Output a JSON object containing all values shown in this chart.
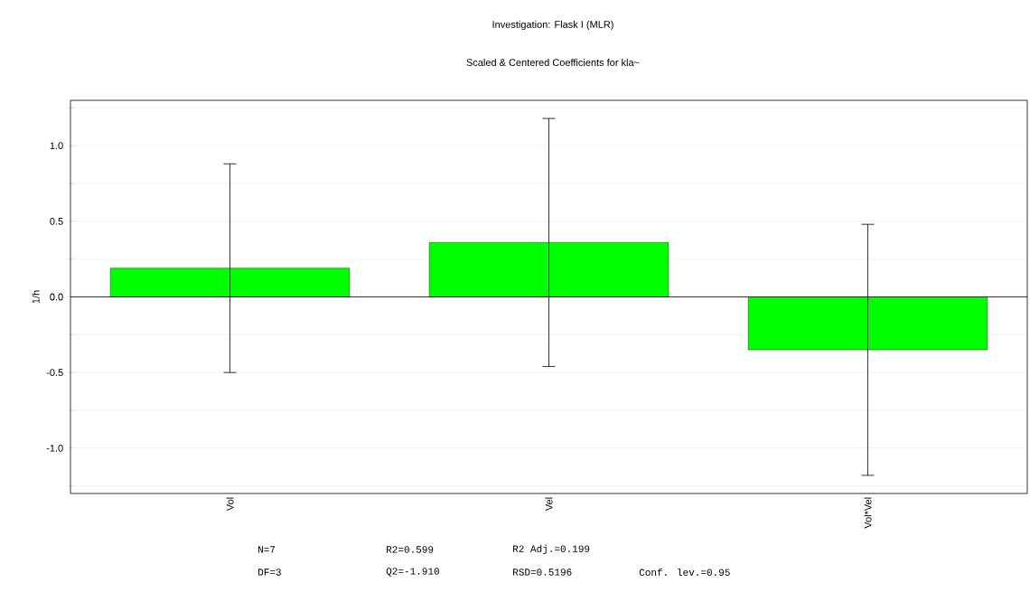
{
  "chart_data": {
    "type": "bar",
    "title": "Investigation: Flask I (MLR)",
    "subtitle": "Scaled & Centered Coefficients for kla~",
    "ylabel": "1/h",
    "categories": [
      "Vol",
      "Vel",
      "Vol*Vel"
    ],
    "values": [
      0.19,
      0.36,
      -0.35
    ],
    "errors": [
      0.69,
      0.82,
      0.83
    ],
    "color": "#00ff00",
    "ylim": [
      -1.3,
      1.3
    ],
    "yticks": [
      {
        "value": -1.25,
        "label": null
      },
      {
        "value": -1.0,
        "label": "-1.0"
      },
      {
        "value": -0.75,
        "label": null
      },
      {
        "value": -0.5,
        "label": "-0.5"
      },
      {
        "value": -0.25,
        "label": null
      },
      {
        "value": 0,
        "label": "0.0"
      },
      {
        "value": 0.25,
        "label": null
      },
      {
        "value": 0.5,
        "label": "0.5"
      },
      {
        "value": 0.75,
        "label": null
      },
      {
        "value": 1.0,
        "label": "1.0"
      },
      {
        "value": 1.25,
        "label": null
      }
    ],
    "grid": "y",
    "ref_lines": [
      {
        "axis": "y",
        "value": 0
      }
    ],
    "annotations": [
      "N=7",
      "DF=3",
      "R2=0.599",
      "Q2=-1.910",
      "R2 Adj.=0.199",
      "RSD=0.5196",
      "Conf. lev.=0.95"
    ]
  }
}
